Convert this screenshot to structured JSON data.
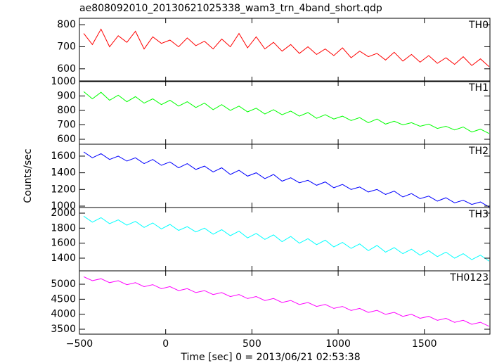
{
  "chart_data": [
    {
      "type": "line",
      "title": "ae808092010_20130621025338_wam3_trn_4band_short.qdp",
      "x": [
        -475,
        -425,
        -375,
        -325,
        -275,
        -225,
        -175,
        -125,
        -75,
        -25,
        25,
        75,
        125,
        175,
        225,
        275,
        325,
        375,
        425,
        475,
        525,
        575,
        625,
        675,
        725,
        775,
        825,
        875,
        925,
        975,
        1025,
        1075,
        1125,
        1175,
        1225,
        1275,
        1325,
        1375,
        1425,
        1475,
        1525,
        1575,
        1625,
        1675,
        1725,
        1775,
        1825,
        1875
      ],
      "series": [
        {
          "name": "TH0",
          "color": "#ff0000",
          "values": [
            760,
            710,
            780,
            700,
            750,
            720,
            770,
            690,
            745,
            715,
            730,
            700,
            740,
            705,
            725,
            690,
            735,
            700,
            760,
            695,
            745,
            690,
            720,
            680,
            710,
            670,
            700,
            665,
            690,
            660,
            695,
            650,
            680,
            655,
            670,
            640,
            675,
            635,
            665,
            630,
            660,
            625,
            650,
            620,
            655,
            615,
            645,
            610
          ]
        }
      ],
      "xlim": [
        -500,
        1880
      ],
      "ylim": [
        542,
        829
      ],
      "yticks": [
        600,
        700,
        800
      ]
    },
    {
      "type": "line",
      "x": [
        -475,
        -425,
        -375,
        -325,
        -275,
        -225,
        -175,
        -125,
        -75,
        -25,
        25,
        75,
        125,
        175,
        225,
        275,
        325,
        375,
        425,
        475,
        525,
        575,
        625,
        675,
        725,
        775,
        825,
        875,
        925,
        975,
        1025,
        1075,
        1125,
        1175,
        1225,
        1275,
        1325,
        1375,
        1425,
        1475,
        1525,
        1575,
        1625,
        1675,
        1725,
        1775,
        1825,
        1875
      ],
      "series": [
        {
          "name": "TH1",
          "color": "#00ff00",
          "values": [
            930,
            880,
            925,
            870,
            905,
            860,
            895,
            850,
            880,
            840,
            870,
            830,
            860,
            820,
            850,
            805,
            840,
            800,
            830,
            790,
            815,
            775,
            805,
            770,
            795,
            760,
            785,
            745,
            770,
            740,
            760,
            730,
            750,
            715,
            740,
            705,
            725,
            700,
            715,
            690,
            705,
            675,
            690,
            665,
            685,
            650,
            670,
            640
          ]
        }
      ],
      "xlim": [
        -500,
        1880
      ],
      "ylim": [
        566,
        1004
      ],
      "yticks": [
        600,
        700,
        800,
        900,
        1000
      ]
    },
    {
      "type": "line",
      "ylabel": "Counts/sec",
      "x": [
        -475,
        -425,
        -375,
        -325,
        -275,
        -225,
        -175,
        -125,
        -75,
        -25,
        25,
        75,
        125,
        175,
        225,
        275,
        325,
        375,
        425,
        475,
        525,
        575,
        625,
        675,
        725,
        775,
        825,
        875,
        925,
        975,
        1025,
        1075,
        1125,
        1175,
        1225,
        1275,
        1325,
        1375,
        1425,
        1475,
        1525,
        1575,
        1625,
        1675,
        1725,
        1775,
        1825,
        1875
      ],
      "series": [
        {
          "name": "TH2",
          "color": "#0000ff",
          "values": [
            1650,
            1580,
            1630,
            1560,
            1600,
            1540,
            1580,
            1510,
            1560,
            1490,
            1530,
            1460,
            1510,
            1440,
            1480,
            1410,
            1460,
            1380,
            1430,
            1360,
            1400,
            1330,
            1380,
            1300,
            1340,
            1280,
            1310,
            1250,
            1290,
            1220,
            1260,
            1200,
            1230,
            1170,
            1200,
            1140,
            1180,
            1110,
            1150,
            1090,
            1120,
            1060,
            1100,
            1040,
            1070,
            1020,
            1050,
            990
          ]
        }
      ],
      "xlim": [
        -500,
        1880
      ],
      "ylim": [
        983,
        1743
      ],
      "yticks": [
        1000,
        1200,
        1400,
        1600
      ]
    },
    {
      "type": "line",
      "x": [
        -475,
        -425,
        -375,
        -325,
        -275,
        -225,
        -175,
        -125,
        -75,
        -25,
        25,
        75,
        125,
        175,
        225,
        275,
        325,
        375,
        425,
        475,
        525,
        575,
        625,
        675,
        725,
        775,
        825,
        875,
        925,
        975,
        1025,
        1075,
        1125,
        1175,
        1225,
        1275,
        1325,
        1375,
        1425,
        1475,
        1525,
        1575,
        1625,
        1675,
        1725,
        1775,
        1825,
        1875
      ],
      "series": [
        {
          "name": "TH3",
          "color": "#00ffff",
          "values": [
            1960,
            1880,
            1940,
            1860,
            1910,
            1840,
            1890,
            1810,
            1870,
            1790,
            1850,
            1770,
            1820,
            1750,
            1800,
            1720,
            1780,
            1700,
            1760,
            1670,
            1730,
            1650,
            1710,
            1620,
            1690,
            1600,
            1660,
            1580,
            1640,
            1550,
            1610,
            1530,
            1590,
            1500,
            1570,
            1480,
            1540,
            1460,
            1520,
            1440,
            1500,
            1420,
            1480,
            1400,
            1460,
            1380,
            1440,
            1360
          ]
        }
      ],
      "xlim": [
        -500,
        1880
      ],
      "ylim": [
        1231,
        2075
      ],
      "yticks": [
        1400,
        1600,
        1800,
        2000
      ]
    },
    {
      "type": "line",
      "xlabel": "Time [sec] 0 = 2013/06/21 02:53:38",
      "x": [
        -475,
        -425,
        -375,
        -325,
        -275,
        -225,
        -175,
        -125,
        -75,
        -25,
        25,
        75,
        125,
        175,
        225,
        275,
        325,
        375,
        425,
        475,
        525,
        575,
        625,
        675,
        725,
        775,
        825,
        875,
        925,
        975,
        1025,
        1075,
        1125,
        1175,
        1225,
        1275,
        1325,
        1375,
        1425,
        1475,
        1525,
        1575,
        1625,
        1675,
        1725,
        1775,
        1825,
        1875
      ],
      "series": [
        {
          "name": "TH0123",
          "color": "#ff00ff",
          "values": [
            5250,
            5117,
            5184,
            5051,
            5118,
            4985,
            5052,
            4919,
            4986,
            4853,
            4920,
            4787,
            4854,
            4721,
            4788,
            4655,
            4722,
            4589,
            4656,
            4523,
            4590,
            4457,
            4524,
            4391,
            4458,
            4325,
            4392,
            4259,
            4326,
            4193,
            4260,
            4127,
            4194,
            4061,
            4128,
            3995,
            4062,
            3929,
            3996,
            3863,
            3930,
            3797,
            3864,
            3731,
            3798,
            3665,
            3732,
            3599
          ]
        }
      ],
      "xlim": [
        -500,
        1880
      ],
      "ylim": [
        3336,
        5446
      ],
      "yticks": [
        3500,
        4000,
        4500,
        5000
      ],
      "xticks": [
        {
          "value": -500,
          "label": "−500"
        },
        0,
        500,
        1000,
        1500
      ]
    }
  ]
}
